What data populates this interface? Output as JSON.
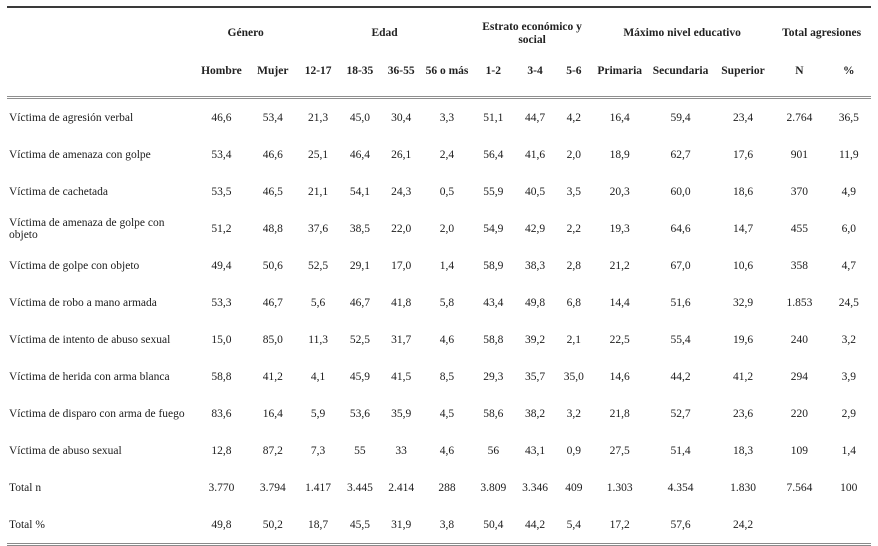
{
  "table": {
    "col_groups": [
      {
        "label": "",
        "span": 1
      },
      {
        "label": "Género",
        "span": 2
      },
      {
        "label": "Edad",
        "span": 4
      },
      {
        "label": "Estrato económico y social",
        "span": 3
      },
      {
        "label": "Máximo nivel educativo",
        "span": 3
      },
      {
        "label": "Total agresiones",
        "span": 2
      }
    ],
    "columns": [
      "Hombre",
      "Mujer",
      "12-17",
      "18-35",
      "36-55",
      "56 o más",
      "1-2",
      "3-4",
      "5-6",
      "Primaria",
      "Secundaria",
      "Superior",
      "N",
      "%"
    ],
    "rows": [
      {
        "label": "Víctima de agresión verbal",
        "values": [
          "46,6",
          "53,4",
          "21,3",
          "45,0",
          "30,4",
          "3,3",
          "51,1",
          "44,7",
          "4,2",
          "16,4",
          "59,4",
          "23,4",
          "2.764",
          "36,5"
        ]
      },
      {
        "label": "Víctima de amenaza con golpe",
        "values": [
          "53,4",
          "46,6",
          "25,1",
          "46,4",
          "26,1",
          "2,4",
          "56,4",
          "41,6",
          "2,0",
          "18,9",
          "62,7",
          "17,6",
          "901",
          "11,9"
        ]
      },
      {
        "label": "Víctima de cachetada",
        "values": [
          "53,5",
          "46,5",
          "21,1",
          "54,1",
          "24,3",
          "0,5",
          "55,9",
          "40,5",
          "3,5",
          "20,3",
          "60,0",
          "18,6",
          "370",
          "4,9"
        ]
      },
      {
        "label": "Víctima de amenaza de golpe con objeto",
        "values": [
          "51,2",
          "48,8",
          "37,6",
          "38,5",
          "22,0",
          "2,0",
          "54,9",
          "42,9",
          "2,2",
          "19,3",
          "64,6",
          "14,7",
          "455",
          "6,0"
        ]
      },
      {
        "label": "Víctima de golpe con objeto",
        "values": [
          "49,4",
          "50,6",
          "52,5",
          "29,1",
          "17,0",
          "1,4",
          "58,9",
          "38,3",
          "2,8",
          "21,2",
          "67,0",
          "10,6",
          "358",
          "4,7"
        ]
      },
      {
        "label": "Víctima de robo a mano armada",
        "values": [
          "53,3",
          "46,7",
          "5,6",
          "46,7",
          "41,8",
          "5,8",
          "43,4",
          "49,8",
          "6,8",
          "14,4",
          "51,6",
          "32,9",
          "1.853",
          "24,5"
        ]
      },
      {
        "label": "Víctima de intento de abuso sexual",
        "values": [
          "15,0",
          "85,0",
          "11,3",
          "52,5",
          "31,7",
          "4,6",
          "58,8",
          "39,2",
          "2,1",
          "22,5",
          "55,4",
          "19,6",
          "240",
          "3,2"
        ]
      },
      {
        "label": "Víctima de herida con arma blanca",
        "values": [
          "58,8",
          "41,2",
          "4,1",
          "45,9",
          "41,5",
          "8,5",
          "29,3",
          "35,7",
          "35,0",
          "14,6",
          "44,2",
          "41,2",
          "294",
          "3,9"
        ]
      },
      {
        "label": "Víctima de disparo con arma de fuego",
        "values": [
          "83,6",
          "16,4",
          "5,9",
          "53,6",
          "35,9",
          "4,5",
          "58,6",
          "38,2",
          "3,2",
          "21,8",
          "52,7",
          "23,6",
          "220",
          "2,9"
        ]
      },
      {
        "label": "Víctima de abuso sexual",
        "values": [
          "12,8",
          "87,2",
          "7,3",
          "55",
          "33",
          "4,6",
          "56",
          "43,1",
          "0,9",
          "27,5",
          "51,4",
          "18,3",
          "109",
          "1,4"
        ]
      },
      {
        "label": "Total n",
        "values": [
          "3.770",
          "3.794",
          "1.417",
          "3.445",
          "2.414",
          "288",
          "3.809",
          "3.346",
          "409",
          "1.303",
          "4.354",
          "1.830",
          "7.564",
          "100"
        ]
      },
      {
        "label": "Total %",
        "values": [
          "49,8",
          "50,2",
          "18,7",
          "45,5",
          "31,9",
          "3,8",
          "50,4",
          "44,2",
          "5,4",
          "17,2",
          "57,6",
          "24,2",
          "",
          ""
        ]
      }
    ]
  }
}
